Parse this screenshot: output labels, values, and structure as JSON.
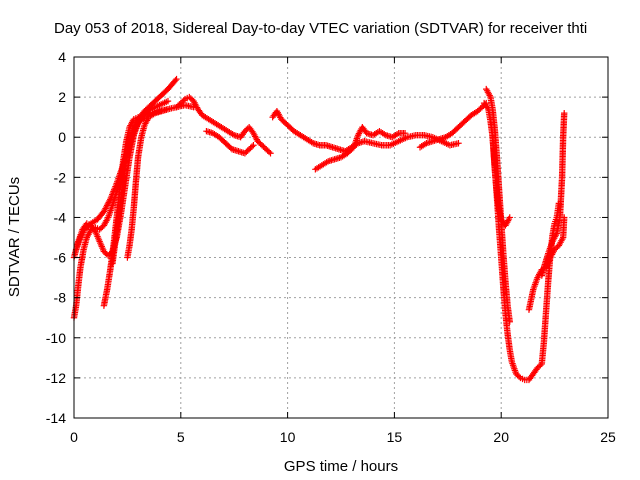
{
  "chart_data": {
    "type": "scatter",
    "title": "Day 053 of 2018, Sidereal Day-to-day VTEC variation (SDTVAR) for receiver thti",
    "xlabel": "GPS time / hours",
    "ylabel": "SDTVAR / TECUs",
    "xlim": [
      0,
      25
    ],
    "ylim": [
      -14,
      4
    ],
    "x_ticks": [
      "0",
      "5",
      "10",
      "15",
      "20",
      "25"
    ],
    "y_ticks": [
      "4",
      "2",
      "0",
      "-2",
      "-4",
      "-6",
      "-8",
      "-10",
      "-12",
      "-14"
    ],
    "grid": true,
    "marker": "+",
    "colors": {
      "series": "#ff0000",
      "grid": "#a0a0a0",
      "axis": "#000000"
    },
    "series": [
      {
        "points": [
          [
            0.0,
            -9.0
          ],
          [
            0.1,
            -8.4
          ],
          [
            0.2,
            -7.4
          ],
          [
            0.3,
            -6.5
          ],
          [
            0.45,
            -5.6
          ],
          [
            0.6,
            -5.0
          ],
          [
            0.8,
            -4.6
          ],
          [
            1.0,
            -4.5
          ],
          [
            1.2,
            -4.6
          ],
          [
            1.4,
            -4.4
          ],
          [
            1.6,
            -4.0
          ],
          [
            1.8,
            -3.4
          ],
          [
            2.0,
            -2.7
          ],
          [
            2.2,
            -2.0
          ],
          [
            2.4,
            -1.1
          ],
          [
            2.6,
            -0.3
          ],
          [
            2.8,
            0.4
          ],
          [
            3.0,
            0.9
          ],
          [
            3.3,
            1.3
          ],
          [
            3.6,
            1.6
          ],
          [
            4.0,
            2.0
          ],
          [
            4.4,
            2.4
          ],
          [
            4.8,
            2.9
          ]
        ]
      },
      {
        "points": [
          [
            0.0,
            -6.0
          ],
          [
            0.2,
            -5.2
          ],
          [
            0.4,
            -4.6
          ],
          [
            0.6,
            -4.3
          ],
          [
            0.8,
            -4.4
          ],
          [
            1.0,
            -4.7
          ],
          [
            1.2,
            -5.2
          ],
          [
            1.4,
            -5.7
          ],
          [
            1.6,
            -5.9
          ],
          [
            1.8,
            -5.7
          ],
          [
            2.0,
            -5.0
          ],
          [
            2.2,
            -3.8
          ],
          [
            2.4,
            -2.4
          ],
          [
            2.6,
            -1.0
          ],
          [
            2.8,
            0.1
          ],
          [
            3.0,
            0.7
          ],
          [
            3.3,
            1.0
          ],
          [
            3.6,
            1.2
          ],
          [
            4.0,
            1.3
          ],
          [
            4.4,
            1.4
          ],
          [
            4.8,
            1.5
          ],
          [
            5.2,
            1.6
          ],
          [
            5.6,
            1.5
          ]
        ]
      },
      {
        "points": [
          [
            1.4,
            -8.4
          ],
          [
            1.55,
            -7.6
          ],
          [
            1.7,
            -6.6
          ],
          [
            1.85,
            -5.4
          ],
          [
            2.0,
            -4.0
          ],
          [
            2.15,
            -2.6
          ],
          [
            2.3,
            -1.2
          ],
          [
            2.45,
            -0.2
          ],
          [
            2.6,
            0.5
          ],
          [
            2.8,
            0.9
          ],
          [
            3.0,
            1.0
          ]
        ]
      },
      {
        "points": [
          [
            1.8,
            -6.3
          ],
          [
            1.95,
            -5.1
          ],
          [
            2.1,
            -3.9
          ],
          [
            2.25,
            -2.6
          ],
          [
            2.4,
            -1.4
          ],
          [
            2.55,
            -0.6
          ],
          [
            2.7,
            0.1
          ],
          [
            2.85,
            0.6
          ],
          [
            3.0,
            0.9
          ]
        ]
      },
      {
        "points": [
          [
            2.5,
            -6.0
          ],
          [
            2.6,
            -5.4
          ],
          [
            2.7,
            -4.6
          ],
          [
            2.8,
            -3.5
          ],
          [
            2.9,
            -2.2
          ],
          [
            3.0,
            -1.0
          ],
          [
            3.15,
            0.0
          ],
          [
            3.3,
            0.6
          ],
          [
            3.5,
            1.0
          ],
          [
            3.8,
            1.2
          ],
          [
            4.1,
            1.3
          ],
          [
            4.4,
            1.4
          ]
        ]
      },
      {
        "points": [
          [
            0.1,
            -5.6
          ],
          [
            0.3,
            -5.0
          ],
          [
            0.5,
            -4.6
          ],
          [
            0.8,
            -4.3
          ],
          [
            1.1,
            -4.1
          ],
          [
            1.4,
            -3.7
          ],
          [
            1.7,
            -3.1
          ],
          [
            2.0,
            -2.3
          ],
          [
            2.3,
            -1.4
          ],
          [
            2.6,
            -0.4
          ],
          [
            2.9,
            0.5
          ],
          [
            3.2,
            1.1
          ],
          [
            3.6,
            1.4
          ],
          [
            4.0,
            1.6
          ],
          [
            4.4,
            1.8
          ]
        ]
      },
      {
        "points": [
          [
            4.8,
            1.5
          ],
          [
            5.0,
            1.7
          ],
          [
            5.2,
            1.9
          ],
          [
            5.4,
            2.0
          ],
          [
            5.6,
            1.8
          ],
          [
            5.8,
            1.4
          ],
          [
            6.0,
            1.1
          ],
          [
            6.3,
            0.9
          ],
          [
            6.6,
            0.7
          ],
          [
            6.9,
            0.5
          ],
          [
            7.2,
            0.3
          ],
          [
            7.5,
            0.1
          ],
          [
            7.8,
            0.0
          ],
          [
            8.0,
            0.3
          ],
          [
            8.2,
            0.5
          ],
          [
            8.4,
            0.2
          ],
          [
            8.6,
            -0.2
          ],
          [
            8.8,
            -0.4
          ],
          [
            9.0,
            -0.6
          ],
          [
            9.2,
            -0.8
          ]
        ]
      },
      {
        "points": [
          [
            6.2,
            0.3
          ],
          [
            6.5,
            0.2
          ],
          [
            6.8,
            0.0
          ],
          [
            7.1,
            -0.3
          ],
          [
            7.4,
            -0.6
          ],
          [
            7.7,
            -0.7
          ],
          [
            8.0,
            -0.8
          ],
          [
            8.2,
            -0.6
          ],
          [
            8.4,
            -0.4
          ]
        ]
      },
      {
        "points": [
          [
            9.3,
            1.0
          ],
          [
            9.5,
            1.3
          ],
          [
            9.7,
            0.9
          ],
          [
            10.0,
            0.6
          ],
          [
            10.3,
            0.3
          ],
          [
            10.6,
            0.1
          ],
          [
            10.9,
            -0.1
          ],
          [
            11.2,
            -0.3
          ],
          [
            11.5,
            -0.4
          ],
          [
            11.8,
            -0.4
          ],
          [
            12.1,
            -0.5
          ],
          [
            12.4,
            -0.6
          ],
          [
            12.7,
            -0.7
          ],
          [
            13.0,
            -0.5
          ],
          [
            13.3,
            -0.3
          ],
          [
            13.6,
            -0.2
          ],
          [
            14.0,
            -0.3
          ],
          [
            14.4,
            -0.4
          ],
          [
            14.8,
            -0.4
          ],
          [
            15.2,
            -0.2
          ],
          [
            15.6,
            0.0
          ],
          [
            16.0,
            0.1
          ],
          [
            16.4,
            0.1
          ],
          [
            16.8,
            0.0
          ],
          [
            17.2,
            -0.2
          ],
          [
            17.6,
            -0.4
          ],
          [
            18.0,
            -0.3
          ]
        ]
      },
      {
        "points": [
          [
            11.3,
            -1.6
          ],
          [
            11.6,
            -1.4
          ],
          [
            11.9,
            -1.2
          ],
          [
            12.2,
            -1.1
          ],
          [
            12.5,
            -1.0
          ],
          [
            12.8,
            -0.8
          ],
          [
            13.1,
            -0.5
          ],
          [
            13.3,
            0.1
          ],
          [
            13.5,
            0.5
          ],
          [
            13.7,
            0.2
          ],
          [
            14.0,
            0.1
          ],
          [
            14.3,
            0.3
          ],
          [
            14.6,
            0.1
          ],
          [
            14.9,
            0.0
          ],
          [
            15.2,
            0.2
          ],
          [
            15.5,
            0.2
          ]
        ]
      },
      {
        "points": [
          [
            16.2,
            -0.5
          ],
          [
            16.5,
            -0.3
          ],
          [
            16.8,
            -0.2
          ],
          [
            17.1,
            -0.1
          ],
          [
            17.4,
            0.0
          ],
          [
            17.7,
            0.2
          ],
          [
            18.0,
            0.5
          ],
          [
            18.3,
            0.8
          ],
          [
            18.6,
            1.1
          ],
          [
            18.9,
            1.3
          ],
          [
            19.1,
            1.5
          ],
          [
            19.3,
            1.7
          ]
        ]
      },
      {
        "points": [
          [
            19.2,
            1.7
          ],
          [
            19.4,
            1.4
          ],
          [
            19.5,
            0.8
          ],
          [
            19.6,
            0.0
          ],
          [
            19.7,
            -1.5
          ],
          [
            19.8,
            -3.0
          ],
          [
            19.9,
            -4.6
          ],
          [
            20.0,
            -6.0
          ],
          [
            20.1,
            -7.5
          ],
          [
            20.2,
            -8.8
          ],
          [
            20.3,
            -9.8
          ],
          [
            20.4,
            -10.6
          ],
          [
            20.5,
            -11.2
          ],
          [
            20.7,
            -11.8
          ],
          [
            20.9,
            -12.0
          ],
          [
            21.1,
            -12.1
          ],
          [
            21.3,
            -12.1
          ],
          [
            21.5,
            -11.8
          ],
          [
            21.7,
            -11.5
          ],
          [
            21.9,
            -11.3
          ],
          [
            22.0,
            -10.2
          ],
          [
            22.1,
            -8.7
          ],
          [
            22.2,
            -7.2
          ],
          [
            22.3,
            -5.9
          ],
          [
            22.4,
            -4.9
          ],
          [
            22.5,
            -4.3
          ],
          [
            22.6,
            -4.0
          ],
          [
            22.7,
            -3.3
          ]
        ]
      },
      {
        "points": [
          [
            19.3,
            2.4
          ],
          [
            19.5,
            2.0
          ],
          [
            19.6,
            1.4
          ],
          [
            19.7,
            0.4
          ],
          [
            19.8,
            -1.0
          ],
          [
            19.9,
            -2.6
          ],
          [
            20.0,
            -4.2
          ],
          [
            20.1,
            -5.8
          ],
          [
            20.2,
            -7.2
          ],
          [
            20.3,
            -8.4
          ],
          [
            20.4,
            -9.2
          ]
        ]
      },
      {
        "points": [
          [
            19.6,
            0.0
          ],
          [
            19.7,
            -1.6
          ],
          [
            19.8,
            -2.8
          ],
          [
            19.9,
            -3.6
          ],
          [
            20.0,
            -4.1
          ],
          [
            20.2,
            -4.4
          ],
          [
            20.4,
            -4.0
          ]
        ]
      },
      {
        "points": [
          [
            21.3,
            -8.6
          ],
          [
            21.5,
            -7.6
          ],
          [
            21.7,
            -7.0
          ],
          [
            21.9,
            -6.6
          ],
          [
            22.1,
            -6.5
          ],
          [
            22.3,
            -6.0
          ],
          [
            22.5,
            -5.6
          ],
          [
            22.7,
            -5.4
          ],
          [
            22.9,
            -5.0
          ],
          [
            22.95,
            -4.0
          ]
        ]
      },
      {
        "points": [
          [
            21.9,
            -6.9
          ],
          [
            22.0,
            -6.5
          ],
          [
            22.2,
            -5.8
          ],
          [
            22.4,
            -5.2
          ],
          [
            22.6,
            -4.8
          ],
          [
            22.75,
            -4.0
          ],
          [
            22.85,
            -2.0
          ],
          [
            22.9,
            0.0
          ],
          [
            22.95,
            1.2
          ]
        ]
      }
    ]
  }
}
